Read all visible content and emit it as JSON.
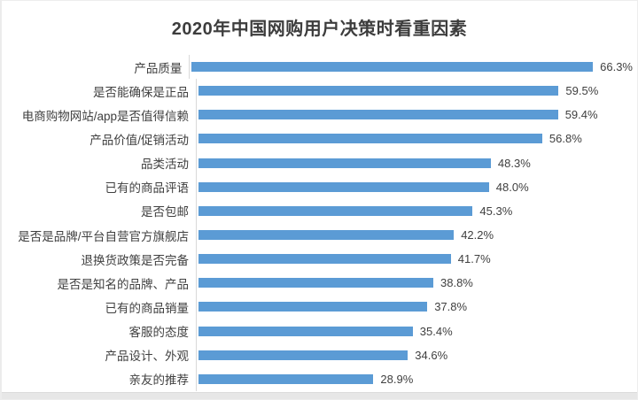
{
  "page": {
    "background": "#ffffff",
    "card_edge_color": "#ededed",
    "bottom_strip_color": "#e7e7e7"
  },
  "chart_data": {
    "type": "bar",
    "orientation": "horizontal",
    "title": "2020年中国网购用户决策时看重因素",
    "categories": [
      "产品质量",
      "是否能确保是正品",
      "电商购物网站/app是否值得信赖",
      "产品价值/促销活动",
      "品类活动",
      "已有的商品评语",
      "是否包邮",
      "是否是品牌/平台自营官方旗舰店",
      "退换货政策是否完备",
      "是否是知名的品牌、产品",
      "已有的商品销量",
      "客服的态度",
      "产品设计、外观",
      "亲友的推荐"
    ],
    "values": [
      66.3,
      59.5,
      59.4,
      56.8,
      48.3,
      48.0,
      45.3,
      42.2,
      41.7,
      38.8,
      37.8,
      35.4,
      34.6,
      28.9
    ],
    "display_labels": [
      "66.3%",
      "59.5%",
      "59.4%",
      "56.8%",
      "48.3%",
      "48.0%",
      "45.3%",
      "42.2%",
      "41.7%",
      "38.8%",
      "37.8%",
      "35.4%",
      "34.6%",
      "28.9%"
    ],
    "value_suffix": "%",
    "xlabel": "",
    "ylabel": "",
    "xlim": [
      0,
      70
    ],
    "grid": false,
    "legend": false,
    "value_label_position": "end-of-bar",
    "bar_color": "#5B9BD5",
    "axis_line_color": "#d9d9d9",
    "label_color": "#404040",
    "title_color": "#3d3d3d"
  }
}
